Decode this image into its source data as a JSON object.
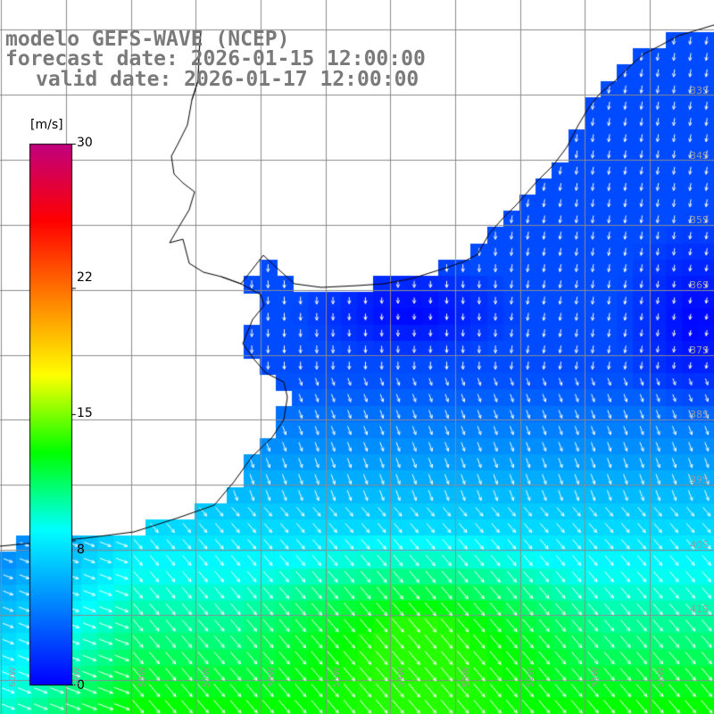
{
  "title": {
    "line1": "modelo GEFS-WAVE (NCEP)",
    "line2": "forecast date: 2026-01-15 12:00:00",
    "line3": "valid date: 2026-01-17 12:00:00"
  },
  "colorbar": {
    "unit": "[m/s]",
    "ticks": [
      {
        "value": 30,
        "label": "30"
      },
      {
        "value": 22,
        "label": "22"
      },
      {
        "value": 15,
        "label": "15"
      },
      {
        "value": 8,
        "label": "8"
      },
      {
        "value": 0,
        "label": "0"
      }
    ],
    "range": [
      0,
      30
    ],
    "colors": [
      "#0000ff",
      "#0080ff",
      "#00ffff",
      "#00ff00",
      "#ffff00",
      "#ff8000",
      "#ff0000",
      "#c00080"
    ]
  },
  "map": {
    "variable": "wind speed (m/s) with wind direction arrows",
    "land_color": "#ffffff",
    "grid_color": "#888888",
    "lat_labels": [
      "33S",
      "34S",
      "35S",
      "36S",
      "37S",
      "38S",
      "39S",
      "40S",
      "41S"
    ],
    "lon_labels": [
      "60W",
      "59W",
      "58W",
      "57W",
      "56W",
      "55W",
      "54W",
      "53W",
      "52W",
      "51W",
      "50W"
    ],
    "wind_field_summary": "weak winds (blue, ~0-5 m/s) over Rio de la Plata and off Uruguay; moderate winds (green, ~10-13 m/s) in the south near 38-41S, blowing toward the southeast"
  }
}
